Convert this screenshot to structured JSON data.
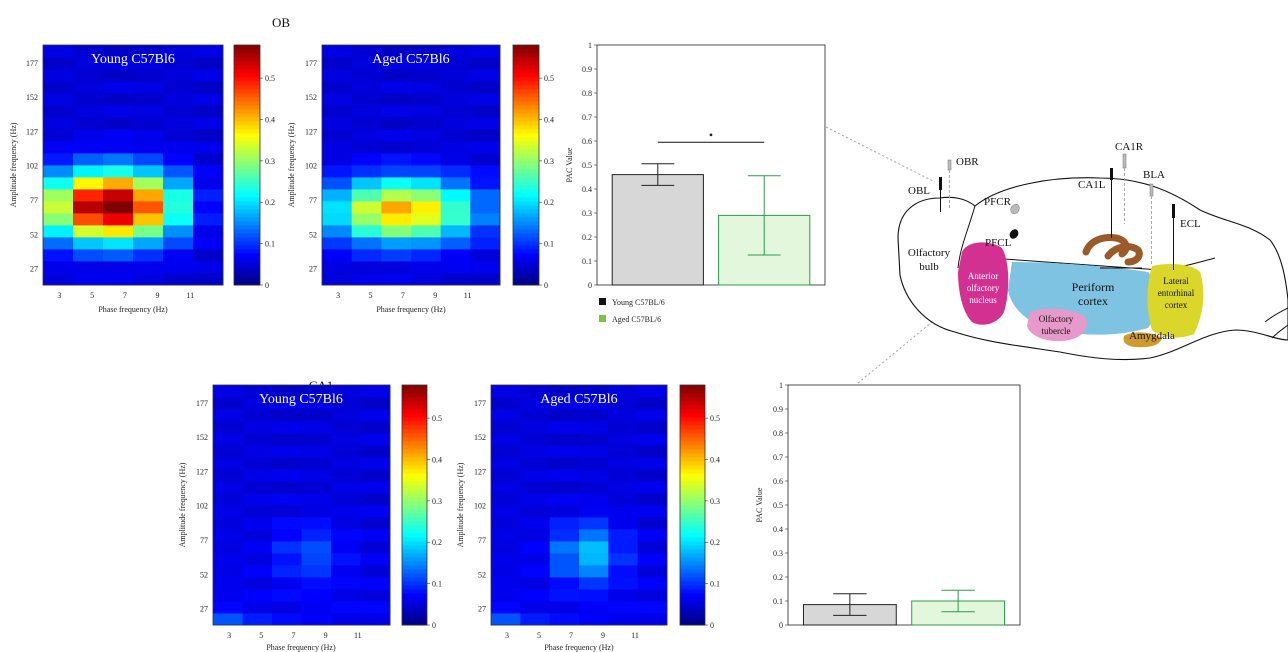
{
  "sections": {
    "ob": "OB",
    "ca1": "CA1"
  },
  "colorbar_ticks": [
    "0",
    "0.1",
    "0.2",
    "0.3",
    "0.4",
    "0.5"
  ],
  "legend": [
    {
      "label": "Young C57BL/6",
      "color": "#111111"
    },
    {
      "label": "Aged C57BL/6",
      "color": "#7dc242"
    }
  ],
  "colors": {
    "young_fill": "#d7d7d7",
    "young_stroke": "#222222",
    "aged_fill": "#e3f7dc",
    "aged_stroke": "#2a9d4b"
  },
  "chart_data": [
    {
      "type": "heatmap",
      "id": "ob-young",
      "title": "Young C57Bl6",
      "xlabel": "Phase frequency (Hz)",
      "ylabel": "Amplitude frequency (Hz)",
      "xticks": [
        "3",
        "5",
        "7",
        "9",
        "11"
      ],
      "yticks": [
        "27",
        "52",
        "77",
        "102",
        "127",
        "152",
        "177"
      ],
      "ylim": [
        15,
        190
      ],
      "clim": [
        0,
        0.58
      ]
    },
    {
      "type": "heatmap",
      "id": "ob-aged",
      "title": "Aged C57Bl6",
      "xlabel": "Phase frequency (Hz)",
      "ylabel": "Amplitude frequency (Hz)",
      "xticks": [
        "3",
        "5",
        "7",
        "9",
        "11"
      ],
      "yticks": [
        "27",
        "52",
        "77",
        "102",
        "127",
        "152",
        "177"
      ],
      "ylim": [
        15,
        190
      ],
      "clim": [
        0,
        0.58
      ]
    },
    {
      "type": "bar",
      "id": "ob-bar",
      "ylabel": "PAC Value",
      "ylim": [
        0,
        1
      ],
      "yticks": [
        "0",
        "0.1",
        "0.2",
        "0.3",
        "0.4",
        "0.5",
        "0.6",
        "0.7",
        "0.8",
        "0.9",
        "1"
      ],
      "values": [
        0.46,
        0.29
      ],
      "errors": [
        0.045,
        0.165
      ],
      "significance": "•"
    },
    {
      "type": "heatmap",
      "id": "ca1-young",
      "title": "Young C57Bl6",
      "xlabel": "Phase frequency (Hz)",
      "ylabel": "Amplitude frequency (Hz)",
      "xticks": [
        "3",
        "5",
        "7",
        "9",
        "11"
      ],
      "yticks": [
        "27",
        "52",
        "77",
        "102",
        "127",
        "152",
        "177"
      ],
      "ylim": [
        15,
        190
      ],
      "clim": [
        0,
        0.58
      ]
    },
    {
      "type": "heatmap",
      "id": "ca1-aged",
      "title": "Aged C57Bl6",
      "xlabel": "Phase frequency (Hz)",
      "ylabel": "Amplitude frequency (Hz)",
      "xticks": [
        "3",
        "5",
        "7",
        "9",
        "11"
      ],
      "yticks": [
        "27",
        "52",
        "77",
        "102",
        "127",
        "152",
        "177"
      ],
      "ylim": [
        15,
        190
      ],
      "clim": [
        0,
        0.58
      ]
    },
    {
      "type": "bar",
      "id": "ca1-bar",
      "ylabel": "PAC Value",
      "ylim": [
        0,
        1
      ],
      "yticks": [
        "0",
        "0.1",
        "0.2",
        "0.3",
        "0.4",
        "0.5",
        "0.6",
        "0.7",
        "0.8",
        "0.9",
        "1"
      ],
      "values": [
        0.085,
        0.1
      ],
      "errors": [
        0.045,
        0.045
      ]
    }
  ],
  "brain": {
    "labels": {
      "obr": "OBR",
      "obl": "OBL",
      "pfcr": "PFCR",
      "pfcl": "PFCL",
      "ca1r": "CA1R",
      "ca1l": "CA1L",
      "bla": "BLA",
      "ecl": "ECL",
      "olfactory_bulb_1": "Olfactory",
      "olfactory_bulb_2": "bulb",
      "anterior_1": "Anterior",
      "anterior_2": "olfactory",
      "anterior_3": "nucleus",
      "periform_1": "Periform",
      "periform_2": "cortex",
      "tubercle_1": "Olfactory",
      "tubercle_2": "tubercle",
      "amygdala": "Amygdala",
      "lateral_1": "Lateral",
      "lateral_2": "entorhinal",
      "lateral_3": "cortex"
    },
    "colors": {
      "anterior": "#d23192",
      "periform": "#7fc3e3",
      "tubercle": "#e79ac9",
      "amygdala": "#cf9b2d",
      "lateral": "#dbd72a",
      "hippocampus": "#9b5a2a"
    }
  }
}
